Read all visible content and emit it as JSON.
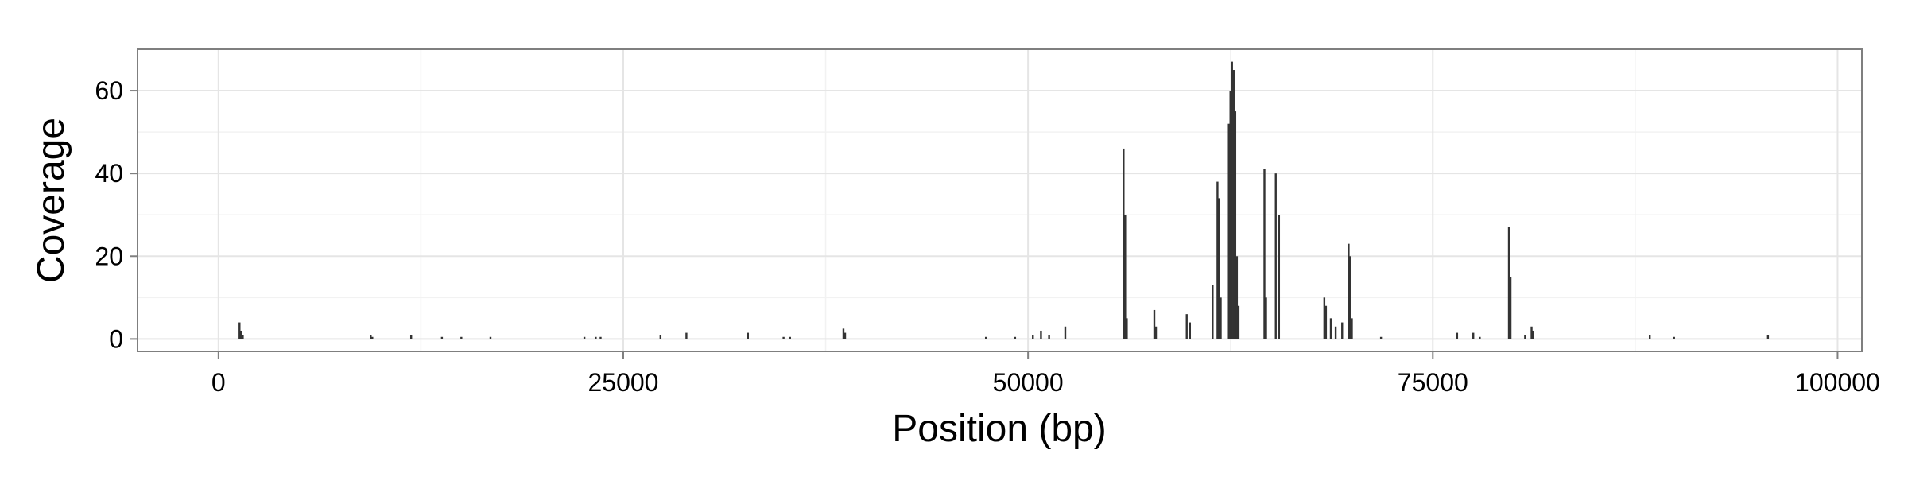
{
  "chart_data": {
    "type": "bar",
    "title": "",
    "xlabel": "Position (bp)",
    "ylabel": "Coverage",
    "xlim": [
      -5000,
      101500
    ],
    "ylim": [
      -3,
      70
    ],
    "grid": true,
    "legend": "none",
    "x_ticks": [
      0,
      25000,
      50000,
      75000,
      100000
    ],
    "x_tick_labels": [
      "0",
      "25000",
      "50000",
      "75000",
      "100000"
    ],
    "y_ticks": [
      0,
      20,
      40,
      60
    ],
    "y_tick_labels": [
      "0",
      "20",
      "40",
      "60"
    ],
    "colors": {
      "bar": "#333333",
      "panel_background": "#ffffff",
      "panel_border": "#7f7f7f",
      "grid_major": "#e5e5e5",
      "grid_minor": "#f2f2f2",
      "tick": "#7f7f7f",
      "text": "#000000"
    },
    "x": [
      1300,
      1400,
      1500,
      9400,
      9500,
      11900,
      13800,
      15000,
      16800,
      22600,
      23300,
      23600,
      27300,
      28900,
      32700,
      34900,
      35300,
      38600,
      38700,
      47400,
      49200,
      50300,
      50800,
      51300,
      52300,
      55900,
      56000,
      56100,
      57800,
      57900,
      59800,
      60000,
      61400,
      61700,
      61800,
      61900,
      62400,
      62500,
      62600,
      62700,
      62800,
      62900,
      63000,
      64600,
      64700,
      65300,
      65500,
      68300,
      68400,
      68700,
      69000,
      69400,
      69800,
      69900,
      70000,
      71800,
      76500,
      77500,
      77900,
      79700,
      79800,
      80700,
      81100,
      81200,
      88400,
      89900,
      95700
    ],
    "values": [
      4,
      2,
      1,
      1,
      0.5,
      1,
      0.5,
      0.5,
      0.5,
      0.5,
      0.5,
      0.5,
      1,
      1.5,
      1.5,
      0.5,
      0.5,
      2.5,
      1.5,
      0.5,
      0.5,
      1,
      2,
      1,
      3,
      46,
      30,
      5,
      7,
      3,
      6,
      4,
      13,
      38,
      34,
      10,
      52,
      60,
      67,
      65,
      55,
      20,
      8,
      41,
      10,
      40,
      30,
      10,
      8,
      5,
      3,
      4,
      23,
      20,
      5,
      0.5,
      1.5,
      1.5,
      0.5,
      27,
      15,
      1,
      3,
      2,
      1,
      0.5,
      1
    ]
  }
}
